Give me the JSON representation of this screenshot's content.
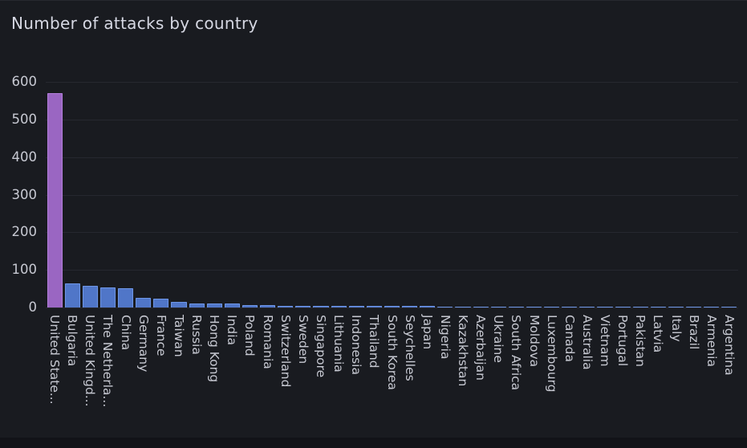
{
  "title": "Number of attacks by country",
  "colors": {
    "card_background": "#191b20",
    "page_background": "#121318",
    "gridline": "#26282f",
    "axis_label": "#c7c9d2",
    "title_text": "#d6d8e3",
    "bar_fill": "#5076c8",
    "bar_border": "#6e96e6",
    "highlight_bar_fill": "#9a66c2",
    "highlight_bar_border": "#b37edb"
  },
  "chart_data": {
    "type": "bar",
    "title": "Number of attacks by country",
    "xlabel": "",
    "ylabel": "",
    "ylim": [
      0,
      600
    ],
    "yticks": [
      0,
      100,
      200,
      300,
      400,
      500,
      600
    ],
    "grid": true,
    "legend": false,
    "x_label_rotation_deg": 90,
    "highlight_index": 0,
    "categories": [
      "United State...",
      "Bulgaria",
      "United Kingd...",
      "The Netherla...",
      "China",
      "Germany",
      "France",
      "Taiwan",
      "Russia",
      "Hong Kong",
      "India",
      "Poland",
      "Romania",
      "Switzerland",
      "Sweden",
      "Singapore",
      "Lithuania",
      "Indonesia",
      "Thailand",
      "South Korea",
      "Seychelles",
      "Japan",
      "Nigeria",
      "Kazakhstan",
      "Azerbaijan",
      "Ukraine",
      "South Africa",
      "Moldova",
      "Luxembourg",
      "Canada",
      "Australia",
      "Vietnam",
      "Portugal",
      "Pakistan",
      "Latvia",
      "Italy",
      "Brazil",
      "Armenia",
      "Argentina"
    ],
    "values": [
      570,
      64,
      58,
      54,
      51,
      25,
      24,
      14,
      11,
      10,
      10,
      7,
      6,
      5,
      5,
      5,
      5,
      4,
      4,
      4,
      4,
      4,
      3,
      3,
      3,
      3,
      3,
      3,
      3,
      2,
      2,
      2,
      2,
      2,
      2,
      2,
      2,
      2,
      2
    ]
  }
}
